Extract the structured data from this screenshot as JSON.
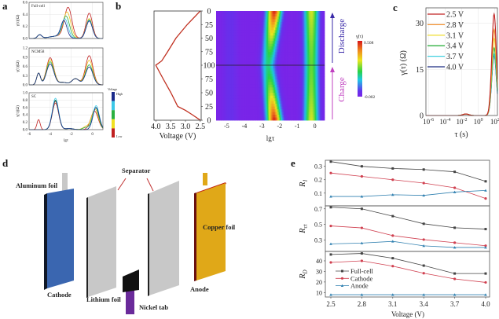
{
  "panel_labels": {
    "a": "a",
    "b": "b",
    "c": "c",
    "d": "d",
    "e": "e"
  },
  "chart_data": [
    {
      "panel": "a",
      "type": "line",
      "xlabel": "lgτ",
      "xlim": [
        -6,
        1
      ],
      "xticks": [
        "-6",
        "-4",
        "-2",
        "0"
      ],
      "ylabel": "γ(τ)(Ω)",
      "colorbar": {
        "title": "Voltage",
        "high": "High",
        "low": "Low",
        "colors": [
          "#1a2a8a",
          "#3cc8e8",
          "#2ab040",
          "#f0e020",
          "#c02020"
        ]
      },
      "subplots": [
        {
          "title": "Full-cell",
          "ylim": [
            0,
            0.6
          ],
          "yticks": [
            "0.0",
            "0.2",
            "0.4",
            "0.6"
          ],
          "series": [
            {
              "color": "#c02020",
              "peaks": [
                [
                  -5.0,
                  0.06,
                  0.2
                ],
                [
                  -3.3,
                  0.04,
                  0.8
                ],
                [
                  -2.3,
                  0.5,
                  0.35
                ],
                [
                  -0.3,
                  0.42,
                  0.3
                ]
              ]
            },
            {
              "color": "#f0c020",
              "peaks": [
                [
                  -5.0,
                  0.06,
                  0.2
                ],
                [
                  -3.3,
                  0.04,
                  0.8
                ],
                [
                  -2.4,
                  0.42,
                  0.35
                ],
                [
                  -0.3,
                  0.33,
                  0.3
                ]
              ]
            },
            {
              "color": "#2ab040",
              "peaks": [
                [
                  -5.0,
                  0.06,
                  0.2
                ],
                [
                  -3.3,
                  0.04,
                  0.8
                ],
                [
                  -2.5,
                  0.35,
                  0.33
                ],
                [
                  -0.3,
                  0.31,
                  0.3
                ]
              ]
            },
            {
              "color": "#3cc8e8",
              "peaks": [
                [
                  -5.0,
                  0.06,
                  0.2
                ],
                [
                  -3.3,
                  0.04,
                  0.8
                ],
                [
                  -2.6,
                  0.3,
                  0.3
                ],
                [
                  -0.3,
                  0.3,
                  0.3
                ]
              ]
            },
            {
              "color": "#1a2a8a",
              "peaks": [
                [
                  -5.0,
                  0.06,
                  0.2
                ],
                [
                  -3.3,
                  0.04,
                  0.8
                ],
                [
                  -2.7,
                  0.27,
                  0.28
                ],
                [
                  -0.3,
                  0.29,
                  0.3
                ]
              ]
            }
          ]
        },
        {
          "title": "NCM58",
          "ylim": [
            0,
            1.2
          ],
          "yticks": [
            "0.0",
            "0.3",
            "0.6",
            "0.9",
            "1.2"
          ],
          "series": [
            {
              "color": "#c02020",
              "peaks": [
                [
                  -5.1,
                  0.38,
                  0.18
                ],
                [
                  -4.0,
                  0.88,
                  0.35
                ],
                [
                  -2.8,
                  0.08,
                  0.4
                ],
                [
                  -1.6,
                  0.2,
                  0.35
                ],
                [
                  -0.3,
                  0.95,
                  0.35
                ]
              ]
            },
            {
              "color": "#f0c020",
              "peaks": [
                [
                  -5.1,
                  0.38,
                  0.18
                ],
                [
                  -4.0,
                  0.82,
                  0.35
                ],
                [
                  -2.8,
                  0.08,
                  0.4
                ],
                [
                  -1.6,
                  0.2,
                  0.35
                ],
                [
                  -0.3,
                  0.8,
                  0.35
                ]
              ]
            },
            {
              "color": "#2ab040",
              "peaks": [
                [
                  -5.1,
                  0.38,
                  0.18
                ],
                [
                  -4.0,
                  0.75,
                  0.35
                ],
                [
                  -2.8,
                  0.08,
                  0.4
                ],
                [
                  -1.6,
                  0.2,
                  0.35
                ],
                [
                  -0.3,
                  0.65,
                  0.35
                ]
              ]
            },
            {
              "color": "#1a2a8a",
              "peaks": [
                [
                  -5.1,
                  0.38,
                  0.18
                ],
                [
                  -4.0,
                  0.68,
                  0.35
                ],
                [
                  -2.8,
                  0.08,
                  0.4
                ],
                [
                  -1.6,
                  0.2,
                  0.35
                ],
                [
                  -0.3,
                  0.58,
                  0.35
                ]
              ]
            }
          ]
        },
        {
          "title": "SC",
          "ylim": [
            0,
            1.0
          ],
          "yticks": [
            "0.0",
            "0.2",
            "0.4",
            "0.6",
            "0.8",
            "1.0"
          ],
          "series": [
            {
              "color": "#c02020",
              "peaks": [
                [
                  -5.1,
                  0.27,
                  0.15
                ],
                [
                  -3.5,
                  0.72,
                  0.3
                ],
                [
                  -2.2,
                  0.03,
                  0.4
                ],
                [
                  0.2,
                  0.5,
                  0.35
                ]
              ]
            },
            {
              "color": "#f0c020",
              "peaks": [
                [
                  -3.5,
                  0.76,
                  0.3
                ],
                [
                  -2.2,
                  0.03,
                  0.4
                ],
                [
                  -0.6,
                  0.08,
                  0.3
                ],
                [
                  0.25,
                  0.55,
                  0.33
                ]
              ]
            },
            {
              "color": "#2ab040",
              "peaks": [
                [
                  -3.5,
                  0.8,
                  0.3
                ],
                [
                  -2.2,
                  0.03,
                  0.4
                ],
                [
                  -0.6,
                  0.06,
                  0.3
                ],
                [
                  0.3,
                  0.6,
                  0.3
                ]
              ]
            },
            {
              "color": "#3cc8e8",
              "peaks": [
                [
                  -3.5,
                  0.85,
                  0.3
                ],
                [
                  -2.2,
                  0.03,
                  0.4
                ],
                [
                  0.35,
                  0.65,
                  0.3
                ]
              ]
            },
            {
              "color": "#1a2a8a",
              "peaks": [
                [
                  -3.5,
                  0.78,
                  0.3
                ],
                [
                  -2.2,
                  0.03,
                  0.4
                ],
                [
                  0.35,
                  0.6,
                  0.3
                ]
              ]
            }
          ]
        }
      ]
    },
    {
      "panel": "b",
      "type": "heatmap",
      "voltage_plot": {
        "xlabel": "Voltage (V)",
        "xlim": [
          4.06,
          2.47
        ],
        "xticks": [
          "4.0",
          "3.5",
          "3.0",
          "2.5"
        ],
        "discharge": [
          [
            0,
            2.5
          ],
          [
            25,
            2.94
          ],
          [
            50,
            3.32
          ],
          [
            75,
            3.6
          ],
          [
            92,
            3.8
          ],
          [
            100,
            4.0
          ]
        ],
        "charge": [
          [
            100,
            4.0
          ],
          [
            75,
            3.75
          ],
          [
            50,
            3.49
          ],
          [
            25,
            3.26
          ],
          [
            18,
            3.0
          ],
          [
            10,
            2.77
          ],
          [
            0,
            2.5
          ]
        ],
        "color": "#c03020"
      },
      "yticks": [
        "0",
        "25",
        "50",
        "75",
        "100",
        "75",
        "50",
        "25",
        "0"
      ],
      "xlabel": "lgτ",
      "xlim": [
        -5.6,
        0.55
      ],
      "xticks": [
        "-5",
        "-4",
        "-3",
        "-2",
        "-1",
        "0"
      ],
      "colorbar": {
        "title": "γ(τ)",
        "max": "0.508",
        "min": "-0.002"
      },
      "bands": [
        {
          "lgtau_edge": -2.3,
          "lgtau_mid": -2.65,
          "gamma_edge": 0.5,
          "gamma_mid": 0.2
        },
        {
          "lgtau_edge": -0.2,
          "lgtau_mid": -0.2,
          "gamma_edge": 0.32,
          "gamma_mid": 0.26
        },
        {
          "lgtau_edge": -4.8,
          "lgtau_mid": -4.8,
          "gamma_edge": 0.04,
          "gamma_mid": 0.04
        }
      ],
      "discharge_label": "Discharge",
      "charge_label": "Charge",
      "discharge_color": "#3a2aa8",
      "charge_color": "#c040c0"
    },
    {
      "panel": "c",
      "type": "line",
      "xlabel": "τ (s)",
      "ylabel": "γ(τ) (Ω)",
      "xlim_log10": [
        -6.3,
        2.3
      ],
      "xticks": [
        {
          "base": "10",
          "exp": "-6"
        },
        {
          "base": "10",
          "exp": "-4"
        },
        {
          "base": "10",
          "exp": "-2"
        },
        {
          "base": "10",
          "exp": "0"
        },
        {
          "base": "10",
          "exp": "2"
        }
      ],
      "ylim": [
        0,
        35
      ],
      "yticks": [
        "0",
        "15",
        "30"
      ],
      "legend_position": "top-left",
      "series": [
        {
          "name": "2.5 V",
          "color": "#c02020",
          "peak": 33
        },
        {
          "name": "2.8 V",
          "color": "#f09030",
          "peak": 28
        },
        {
          "name": "3.1 V",
          "color": "#f0e040",
          "peak": 25
        },
        {
          "name": "3.4 V",
          "color": "#30b040",
          "peak": 22
        },
        {
          "name": "3.7 V",
          "color": "#40d0e0",
          "peak": 20
        },
        {
          "name": "4.0 V",
          "color": "#1a2a80",
          "peak": 19.5
        }
      ],
      "peak_log10_tau": 1.9,
      "minor_peak": {
        "log10_tau": -1.5,
        "value": 0.5
      }
    },
    {
      "panel": "e",
      "type": "line",
      "x": [
        2.5,
        2.8,
        3.1,
        3.4,
        3.7,
        4.0
      ],
      "xticks": [
        "2.5",
        "2.8",
        "3.1",
        "3.4",
        "3.7",
        "4.0"
      ],
      "xlabel": "Voltage (V)",
      "legend_position": "lower-left of bottom subplot",
      "legend": [
        {
          "name": "Full-cell",
          "color": "#444444",
          "marker": "square"
        },
        {
          "name": "Cathode",
          "color": "#d04050",
          "marker": "circle"
        },
        {
          "name": "Anode",
          "color": "#3080b0",
          "marker": "triangle"
        }
      ],
      "subplots": [
        {
          "ylabel": {
            "main": "R",
            "sub": "1"
          },
          "ylim": [
            0.005,
            0.345
          ],
          "yticks": [
            0.1,
            0.2,
            0.3
          ],
          "ytick_labels": [
            "0.1",
            "0.2",
            "0.3"
          ],
          "series": [
            [
              0.335,
              0.3,
              0.284,
              0.276,
              0.259,
              0.188
            ],
            [
              0.25,
              0.225,
              0.2,
              0.175,
              0.14,
              0.06
            ],
            [
              0.075,
              0.075,
              0.088,
              0.083,
              0.108,
              0.12
            ]
          ]
        },
        {
          "ylabel": {
            "main": "R",
            "sub": "ct"
          },
          "ylim": [
            0.153,
            0.738
          ],
          "yticks": [
            0.3,
            0.5,
            0.7
          ],
          "ytick_labels": [
            "0.3",
            "0.5",
            "0.7"
          ],
          "series": [
            [
              0.72,
              0.7,
              0.606,
              0.508,
              0.457,
              0.44
            ],
            [
              0.48,
              0.455,
              0.356,
              0.305,
              0.265,
              0.226
            ],
            [
              0.25,
              0.26,
              0.282,
              0.225,
              0.204,
              0.204
            ]
          ]
        },
        {
          "ylabel": {
            "main": "R",
            "sub": "D"
          },
          "ylim": [
            5.8,
            48.9
          ],
          "yticks": [
            10,
            20,
            30,
            40
          ],
          "ytick_labels": [
            "10",
            "20",
            "30",
            "40"
          ],
          "series": [
            [
              46,
              47,
              42.5,
              35.5,
              28,
              28
            ],
            [
              38.5,
              40,
              35,
              28.3,
              22.9,
              19.6
            ],
            [
              8,
              8,
              8,
              8,
              8,
              8
            ]
          ]
        }
      ]
    }
  ],
  "diagram": {
    "labels": {
      "aluminum_foil": "Aluminum foil",
      "separator": "Separator",
      "copper_foil": "Copper foil",
      "cathode": "Cathode",
      "lithium_foil": "Lithium foil",
      "nickel_tab": "Nickel tab",
      "anode": "Anode"
    },
    "colors": {
      "cathode": "#3a66b0",
      "separator": "#c8c8c8",
      "anode": "#e0a818",
      "nickel_tab": "#111111",
      "nickel_lead": "#6a2a9a",
      "arrow": "#c03030"
    }
  }
}
